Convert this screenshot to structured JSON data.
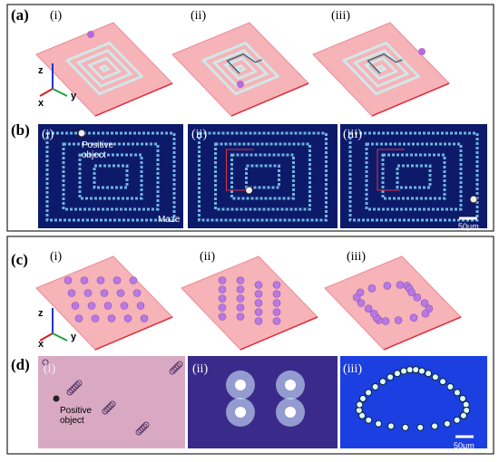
{
  "panels": [
    {
      "label": "(a)",
      "subpanels": [
        "(i)",
        "(ii)",
        "(iii)"
      ],
      "axes": [
        "z",
        "x",
        "y"
      ]
    },
    {
      "label": "(b)",
      "subpanels": [
        "(i)",
        "(ii)",
        "(iii)"
      ],
      "annotations": [
        "Positive object",
        "Maze"
      ],
      "scale_bar": "50μm"
    },
    {
      "label": "(c)",
      "subpanels": [
        "(i)",
        "(ii)",
        "(iii)"
      ],
      "axes": [
        "z",
        "x",
        "y"
      ]
    },
    {
      "label": "(d)",
      "subpanels": [
        "(i)",
        "(ii)",
        "(iii)"
      ],
      "annotations": [
        "Positive object"
      ],
      "scale_bar": "50μm"
    }
  ]
}
